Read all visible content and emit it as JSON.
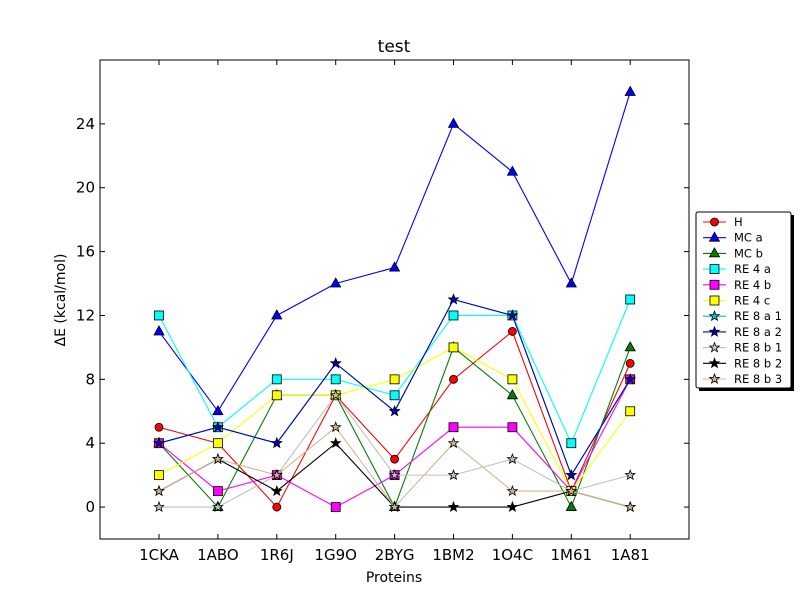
{
  "chart_data": {
    "type": "line",
    "title": "test",
    "xlabel": "Proteins",
    "ylabel": "ΔE (kcal/mol)",
    "categories": [
      "1CKA",
      "1ABO",
      "1R6J",
      "1G9O",
      "2BYG",
      "1BM2",
      "1O4C",
      "1M61",
      "1A81"
    ],
    "yticks": [
      "0",
      "4",
      "8",
      "12",
      "16",
      "20",
      "24"
    ],
    "ylim": [
      -2,
      28
    ],
    "grid": false,
    "legend_position": "right",
    "series": [
      {
        "name": "H",
        "color": "#ff0000",
        "marker": "circle",
        "values": [
          5,
          4,
          0,
          7,
          3,
          8,
          11,
          1,
          9
        ]
      },
      {
        "name": "MC a",
        "color": "#0000ff",
        "marker": "triangle",
        "values": [
          11,
          6,
          12,
          14,
          15,
          24,
          21,
          14,
          26
        ]
      },
      {
        "name": "MC b",
        "color": "#007f00",
        "marker": "triangle",
        "values": [
          4,
          0,
          7,
          7,
          0,
          10,
          7,
          0,
          10
        ]
      },
      {
        "name": "RE 4 a",
        "color": "#00ffff",
        "marker": "square",
        "values": [
          12,
          5,
          8,
          8,
          7,
          12,
          12,
          4,
          13
        ]
      },
      {
        "name": "RE 4 b",
        "color": "#ff00ff",
        "marker": "square",
        "values": [
          4,
          1,
          2,
          0,
          2,
          5,
          5,
          1,
          8
        ]
      },
      {
        "name": "RE 4 c",
        "color": "#ffff00",
        "marker": "square",
        "values": [
          2,
          4,
          7,
          7,
          8,
          10,
          8,
          1,
          6
        ]
      },
      {
        "name": "RE 8 a 1",
        "color": "#00bfbf",
        "marker": "star",
        "values": [
          4,
          5,
          4,
          9,
          6,
          13,
          12,
          2,
          8
        ]
      },
      {
        "name": "RE 8 a 2",
        "color": "#0000cc",
        "marker": "star",
        "values": [
          4,
          5,
          4,
          9,
          6,
          13,
          12,
          2,
          8
        ]
      },
      {
        "name": "RE 8 b 1",
        "color": "#c0c0c0",
        "marker": "star",
        "values": [
          0,
          0,
          2,
          7,
          2,
          2,
          3,
          1,
          2
        ]
      },
      {
        "name": "RE 8 b 2",
        "color": "#000000",
        "marker": "star",
        "values": [
          1,
          3,
          1,
          4,
          0,
          0,
          0,
          1,
          0
        ]
      },
      {
        "name": "RE 8 b 3",
        "color": "#d2b48c",
        "marker": "star",
        "values": [
          1,
          3,
          2,
          5,
          0,
          4,
          1,
          1,
          0
        ]
      }
    ]
  }
}
